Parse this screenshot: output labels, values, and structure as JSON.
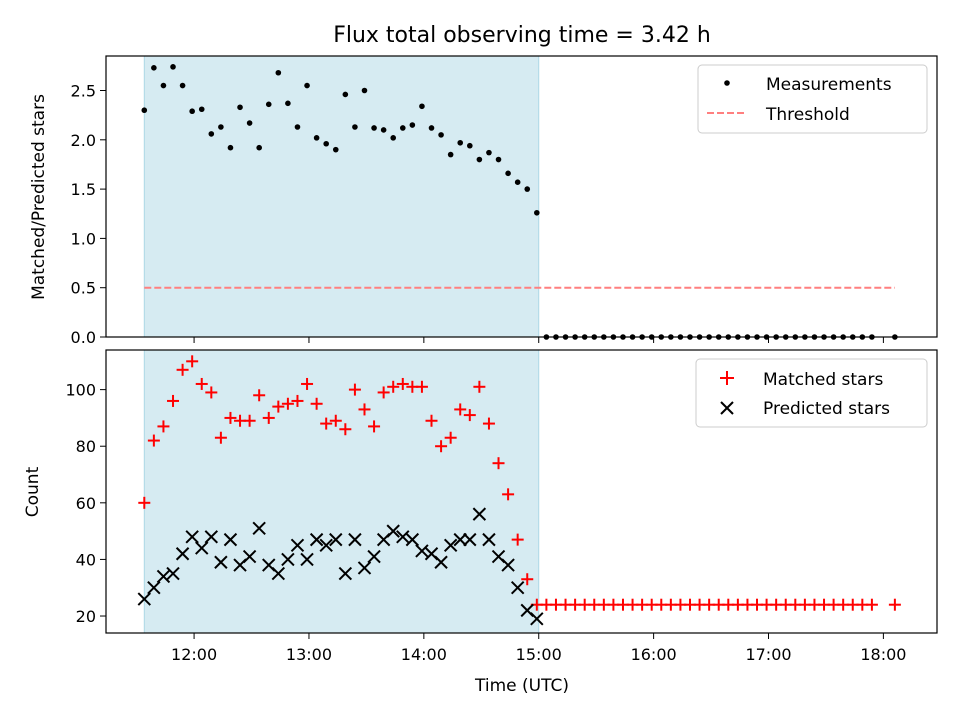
{
  "chart_data": [
    {
      "type": "scatter",
      "title": "Flux total observing time = 3.42 h",
      "ylabel": "Matched/Predicted stars",
      "xlabel": "",
      "xlim": [
        "11:14",
        "18:28"
      ],
      "ylim": [
        0,
        2.85
      ],
      "yticks": [
        0.0,
        0.5,
        1.0,
        1.5,
        2.0,
        2.5
      ],
      "ytick_labels": [
        "0.0",
        "0.5",
        "1.0",
        "1.5",
        "2.0",
        "2.5"
      ],
      "shaded_span": [
        "11:34",
        "15:00"
      ],
      "shade_color": "#add8e6",
      "series": [
        {
          "name": "Measurements",
          "marker": "dot",
          "color": "#000000",
          "x": [
            "11:34",
            "11:39",
            "11:44",
            "11:49",
            "11:54",
            "11:59",
            "12:04",
            "12:09",
            "12:14",
            "12:19",
            "12:24",
            "12:29",
            "12:34",
            "12:39",
            "12:44",
            "12:49",
            "12:54",
            "12:59",
            "13:04",
            "13:09",
            "13:14",
            "13:19",
            "13:24",
            "13:29",
            "13:34",
            "13:39",
            "13:44",
            "13:49",
            "13:54",
            "13:59",
            "14:04",
            "14:09",
            "14:14",
            "14:19",
            "14:24",
            "14:29",
            "14:34",
            "14:39",
            "14:44",
            "14:49",
            "14:54",
            "14:59",
            "15:04",
            "15:09",
            "15:14",
            "15:19",
            "15:24",
            "15:29",
            "15:34",
            "15:39",
            "15:44",
            "15:49",
            "15:54",
            "15:59",
            "16:04",
            "16:09",
            "16:14",
            "16:19",
            "16:24",
            "16:29",
            "16:34",
            "16:39",
            "16:44",
            "16:49",
            "16:54",
            "16:59",
            "17:04",
            "17:09",
            "17:14",
            "17:19",
            "17:24",
            "17:29",
            "17:34",
            "17:39",
            "17:44",
            "17:49",
            "17:54",
            "18:06"
          ],
          "y": [
            2.3,
            2.73,
            2.55,
            2.74,
            2.55,
            2.29,
            2.31,
            2.06,
            2.13,
            1.92,
            2.33,
            2.17,
            1.92,
            2.36,
            2.68,
            2.37,
            2.13,
            2.55,
            2.02,
            1.96,
            1.9,
            2.46,
            2.13,
            2.5,
            2.12,
            2.1,
            2.02,
            2.12,
            2.15,
            2.34,
            2.12,
            2.05,
            1.85,
            1.97,
            1.94,
            1.8,
            1.87,
            1.8,
            1.66,
            1.57,
            1.5,
            1.26,
            0,
            0,
            0,
            0,
            0,
            0,
            0,
            0,
            0,
            0,
            0,
            0,
            0,
            0,
            0,
            0,
            0,
            0,
            0,
            0,
            0,
            0,
            0,
            0,
            0,
            0,
            0,
            0,
            0,
            0,
            0,
            0,
            0,
            0,
            0,
            0
          ]
        },
        {
          "name": "Threshold",
          "style": "dashed",
          "color": "#ff7f7f",
          "x": [
            "11:34",
            "18:06"
          ],
          "y": [
            0.5,
            0.5
          ]
        }
      ],
      "legend": "top-right"
    },
    {
      "type": "scatter",
      "ylabel": "Count",
      "xlabel": "Time (UTC)",
      "xlim": [
        "11:14",
        "18:28"
      ],
      "ylim": [
        14,
        114
      ],
      "xticks": [
        "12:00",
        "13:00",
        "14:00",
        "15:00",
        "16:00",
        "17:00",
        "18:00"
      ],
      "yticks": [
        20,
        40,
        60,
        80,
        100
      ],
      "shaded_span": [
        "11:34",
        "15:00"
      ],
      "shade_color": "#add8e6",
      "series": [
        {
          "name": "Matched stars",
          "marker": "plus",
          "color": "#ff0000",
          "x": [
            "11:34",
            "11:39",
            "11:44",
            "11:49",
            "11:54",
            "11:59",
            "12:04",
            "12:09",
            "12:14",
            "12:19",
            "12:24",
            "12:29",
            "12:34",
            "12:39",
            "12:44",
            "12:49",
            "12:54",
            "12:59",
            "13:04",
            "13:09",
            "13:14",
            "13:19",
            "13:24",
            "13:29",
            "13:34",
            "13:39",
            "13:44",
            "13:49",
            "13:54",
            "13:59",
            "14:04",
            "14:09",
            "14:14",
            "14:19",
            "14:24",
            "14:29",
            "14:34",
            "14:39",
            "14:44",
            "14:49",
            "14:54",
            "14:59",
            "15:04",
            "15:09",
            "15:14",
            "15:19",
            "15:24",
            "15:29",
            "15:34",
            "15:39",
            "15:44",
            "15:49",
            "15:54",
            "15:59",
            "16:04",
            "16:09",
            "16:14",
            "16:19",
            "16:24",
            "16:29",
            "16:34",
            "16:39",
            "16:44",
            "16:49",
            "16:54",
            "16:59",
            "17:04",
            "17:09",
            "17:14",
            "17:19",
            "17:24",
            "17:29",
            "17:34",
            "17:39",
            "17:44",
            "17:49",
            "17:54",
            "18:06"
          ],
          "y": [
            60,
            82,
            87,
            96,
            107,
            110,
            102,
            99,
            83,
            90,
            89,
            89,
            98,
            90,
            94,
            95,
            96,
            102,
            95,
            88,
            89,
            86,
            100,
            93,
            87,
            99,
            101,
            102,
            101,
            101,
            89,
            80,
            83,
            93,
            91,
            101,
            88,
            74,
            63,
            47,
            33,
            24,
            24,
            24,
            24,
            24,
            24,
            24,
            24,
            24,
            24,
            24,
            24,
            24,
            24,
            24,
            24,
            24,
            24,
            24,
            24,
            24,
            24,
            24,
            24,
            24,
            24,
            24,
            24,
            24,
            24,
            24,
            24,
            24,
            24,
            24,
            24,
            24
          ]
        },
        {
          "name": "Predicted stars",
          "marker": "x",
          "color": "#000000",
          "x": [
            "11:34",
            "11:39",
            "11:44",
            "11:49",
            "11:54",
            "11:59",
            "12:04",
            "12:09",
            "12:14",
            "12:19",
            "12:24",
            "12:29",
            "12:34",
            "12:39",
            "12:44",
            "12:49",
            "12:54",
            "12:59",
            "13:04",
            "13:09",
            "13:14",
            "13:19",
            "13:24",
            "13:29",
            "13:34",
            "13:39",
            "13:44",
            "13:49",
            "13:54",
            "13:59",
            "14:04",
            "14:09",
            "14:14",
            "14:19",
            "14:24",
            "14:29",
            "14:34",
            "14:39",
            "14:44",
            "14:49",
            "14:54",
            "14:59"
          ],
          "y": [
            26,
            30,
            34,
            35,
            42,
            48,
            44,
            48,
            39,
            47,
            38,
            41,
            51,
            38,
            35,
            40,
            45,
            40,
            47,
            45,
            47,
            35,
            47,
            37,
            41,
            47,
            50,
            48,
            47,
            43,
            42,
            39,
            45,
            47,
            47,
            56,
            47,
            41,
            38,
            30,
            22,
            19
          ]
        }
      ],
      "legend": "top-right"
    }
  ]
}
